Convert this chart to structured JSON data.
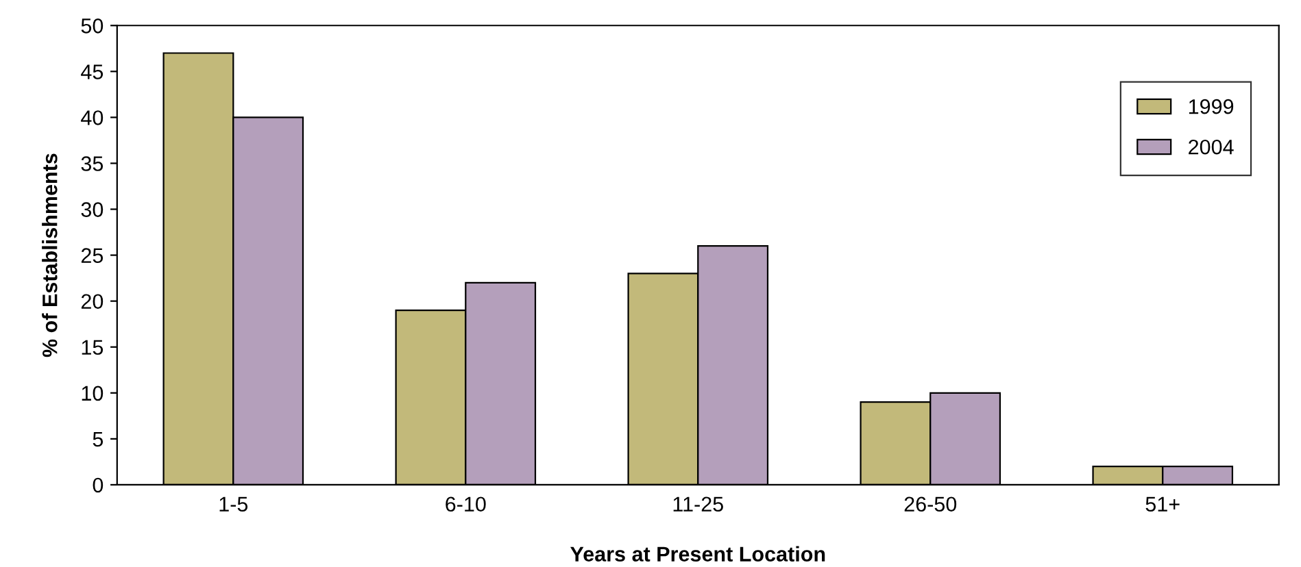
{
  "chart_data": {
    "type": "bar",
    "xlabel": "Years at Present Location",
    "ylabel": "% of Establishments",
    "categories": [
      "1-5",
      "6-10",
      "11-25",
      "26-50",
      "51+"
    ],
    "series": [
      {
        "name": "1999",
        "color": "#c2b97a",
        "values": [
          47,
          19,
          23,
          9,
          2
        ]
      },
      {
        "name": "2004",
        "color": "#b49fbb",
        "values": [
          40,
          22,
          26,
          10,
          2
        ]
      }
    ],
    "ylim": [
      0,
      50
    ],
    "yticks": [
      0,
      5,
      10,
      15,
      20,
      25,
      30,
      35,
      40,
      45,
      50
    ],
    "grid": false,
    "legend": "top right"
  }
}
